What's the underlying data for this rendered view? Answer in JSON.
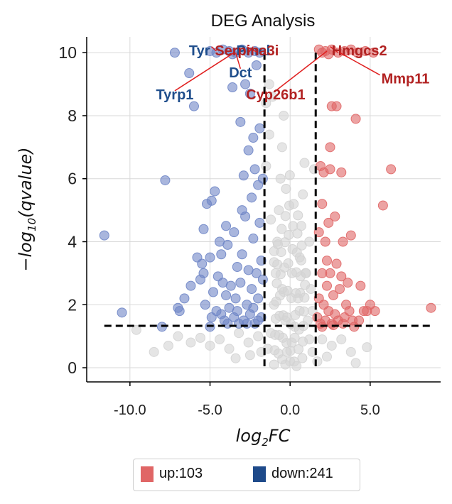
{
  "chart_data": {
    "type": "scatter",
    "title": "DEG Analysis",
    "xlabel_base": "log",
    "xlabel_sub": "2",
    "xlabel_rest": "FC",
    "ylabel_prefix": "−log",
    "ylabel_sub": "10",
    "ylabel_rest": "(qvalue)",
    "xlim": [
      -12.7,
      9.4
    ],
    "ylim": [
      -0.45,
      10.5
    ],
    "xticks": [
      -10.0,
      -5.0,
      0.0,
      5.0
    ],
    "xtick_labels": [
      "-10.0",
      "-5.0",
      "0.0",
      "5.0"
    ],
    "yticks": [
      0,
      2,
      4,
      6,
      8,
      10
    ],
    "ytick_labels": [
      "0",
      "2",
      "4",
      "6",
      "8",
      "10"
    ],
    "grid": true,
    "thresholds": {
      "fc_low": -1.6,
      "fc_high": 1.6,
      "q": 1.33
    },
    "colors": {
      "up": "#e06666",
      "down": "#6f86c6",
      "ns": "#d4d4d4",
      "up_label": "#b22222",
      "down_label": "#1f4e8c"
    },
    "legend": [
      {
        "name": "up",
        "count_label": "up:103",
        "color": "#e06666"
      },
      {
        "name": "down",
        "count_label": "down:241",
        "color": "#1e4a8a"
      }
    ],
    "series": [
      {
        "name": "down",
        "points": [
          [
            -11.6,
            4.2
          ],
          [
            -10.5,
            1.75
          ],
          [
            -8.0,
            1.3
          ],
          [
            -7.8,
            5.95
          ],
          [
            -7.2,
            10.0
          ],
          [
            -7.0,
            1.9
          ],
          [
            -6.9,
            1.8
          ],
          [
            -6.6,
            2.2
          ],
          [
            -6.3,
            9.35
          ],
          [
            -6.2,
            2.6
          ],
          [
            -6.0,
            8.3
          ],
          [
            -5.8,
            3.5
          ],
          [
            -5.6,
            2.8
          ],
          [
            -5.5,
            3.3
          ],
          [
            -5.4,
            4.4
          ],
          [
            -5.3,
            2.0
          ],
          [
            -5.2,
            5.2
          ],
          [
            -5.0,
            3.5
          ],
          [
            -5.0,
            1.3
          ],
          [
            -4.9,
            5.3
          ],
          [
            -4.8,
            2.4
          ],
          [
            -4.7,
            5.6
          ],
          [
            -4.6,
            1.8
          ],
          [
            -4.5,
            2.9
          ],
          [
            -4.4,
            4.0
          ],
          [
            -4.3,
            3.6
          ],
          [
            -4.2,
            2.7
          ],
          [
            -4.1,
            1.5
          ],
          [
            -4.0,
            4.5
          ],
          [
            -4.0,
            2.3
          ],
          [
            -3.9,
            3.9
          ],
          [
            -3.8,
            1.9
          ],
          [
            -3.7,
            2.6
          ],
          [
            -3.6,
            8.9
          ],
          [
            -3.5,
            4.3
          ],
          [
            -3.5,
            1.6
          ],
          [
            -3.4,
            2.2
          ],
          [
            -3.3,
            3.2
          ],
          [
            -3.2,
            1.4
          ],
          [
            -3.1,
            7.8
          ],
          [
            -3.1,
            2.7
          ],
          [
            -3.0,
            5.0
          ],
          [
            -3.0,
            3.6
          ],
          [
            -2.9,
            6.1
          ],
          [
            -2.9,
            1.5
          ],
          [
            -2.8,
            9.0
          ],
          [
            -2.8,
            4.8
          ],
          [
            -2.7,
            2.0
          ],
          [
            -2.6,
            6.9
          ],
          [
            -2.6,
            3.1
          ],
          [
            -2.5,
            8.7
          ],
          [
            -2.5,
            1.7
          ],
          [
            -2.4,
            5.4
          ],
          [
            -2.4,
            2.5
          ],
          [
            -2.3,
            7.3
          ],
          [
            -2.3,
            4.1
          ],
          [
            -2.2,
            6.3
          ],
          [
            -2.2,
            1.4
          ],
          [
            -2.1,
            3.0
          ],
          [
            -2.1,
            9.6
          ],
          [
            -2.0,
            5.8
          ],
          [
            -2.0,
            2.2
          ],
          [
            -1.9,
            4.6
          ],
          [
            -1.9,
            7.6
          ],
          [
            -1.8,
            3.4
          ],
          [
            -1.8,
            1.6
          ],
          [
            -1.7,
            6.0
          ],
          [
            -1.7,
            2.8
          ],
          [
            -3.4,
            10.0
          ],
          [
            -3.8,
            10.05
          ],
          [
            -4.2,
            10.1
          ],
          [
            -4.6,
            10.0
          ],
          [
            -5.0,
            10.05
          ],
          [
            -2.6,
            10.0
          ],
          [
            -2.2,
            10.05
          ],
          [
            -1.9,
            10.0
          ],
          [
            -3.0,
            10.1
          ],
          [
            -3.6,
            9.95
          ],
          [
            -5.4,
            3.0
          ],
          [
            -4.9,
            1.6
          ],
          [
            -4.3,
            1.7
          ],
          [
            -3.9,
            1.4
          ],
          [
            -3.3,
            1.8
          ],
          [
            -2.7,
            1.4
          ],
          [
            -2.3,
            1.9
          ],
          [
            -2.0,
            1.5
          ]
        ]
      },
      {
        "name": "up",
        "points": [
          [
            1.7,
            1.6
          ],
          [
            1.8,
            2.2
          ],
          [
            1.8,
            4.3
          ],
          [
            1.9,
            6.4
          ],
          [
            1.9,
            1.4
          ],
          [
            2.0,
            3.0
          ],
          [
            2.0,
            5.2
          ],
          [
            2.1,
            2.0
          ],
          [
            2.1,
            6.2
          ],
          [
            2.2,
            4.0
          ],
          [
            2.2,
            1.5
          ],
          [
            2.3,
            2.6
          ],
          [
            2.3,
            3.4
          ],
          [
            2.4,
            4.6
          ],
          [
            2.4,
            1.8
          ],
          [
            2.5,
            6.3
          ],
          [
            2.5,
            3.0
          ],
          [
            2.5,
            7.0
          ],
          [
            2.6,
            8.3
          ],
          [
            2.6,
            1.4
          ],
          [
            2.7,
            2.3
          ],
          [
            2.8,
            4.8
          ],
          [
            2.8,
            1.7
          ],
          [
            2.9,
            8.3
          ],
          [
            2.9,
            3.3
          ],
          [
            3.0,
            1.5
          ],
          [
            3.1,
            2.5
          ],
          [
            3.2,
            6.2
          ],
          [
            3.2,
            2.9
          ],
          [
            3.3,
            4.0
          ],
          [
            3.4,
            1.6
          ],
          [
            3.5,
            2.0
          ],
          [
            3.6,
            2.7
          ],
          [
            3.7,
            1.8
          ],
          [
            3.8,
            4.2
          ],
          [
            3.9,
            1.5
          ],
          [
            4.1,
            7.9
          ],
          [
            4.3,
            1.5
          ],
          [
            4.4,
            2.6
          ],
          [
            4.6,
            1.8
          ],
          [
            4.8,
            1.8
          ],
          [
            5.0,
            2.0
          ],
          [
            5.3,
            1.8
          ],
          [
            5.8,
            5.15
          ],
          [
            6.3,
            6.3
          ],
          [
            8.8,
            1.9
          ],
          [
            2.2,
            10.05
          ],
          [
            2.6,
            10.1
          ],
          [
            3.0,
            10.0
          ],
          [
            3.4,
            10.05
          ],
          [
            3.8,
            10.1
          ],
          [
            4.2,
            10.0
          ],
          [
            4.7,
            10.05
          ],
          [
            2.0,
            10.0
          ],
          [
            1.8,
            10.1
          ],
          [
            2.4,
            9.95
          ],
          [
            5.2,
            10.0
          ],
          [
            2.0,
            1.3
          ],
          [
            2.7,
            1.35
          ],
          [
            3.3,
            1.4
          ],
          [
            4.0,
            1.3
          ]
        ]
      },
      {
        "name": "ns",
        "points": [
          [
            -9.6,
            1.2
          ],
          [
            -8.5,
            0.5
          ],
          [
            -7.6,
            0.7
          ],
          [
            -7.0,
            1.0
          ],
          [
            -6.2,
            0.8
          ],
          [
            -5.6,
            0.95
          ],
          [
            -5.0,
            0.7
          ],
          [
            -4.4,
            0.9
          ],
          [
            -3.8,
            0.6
          ],
          [
            -3.2,
            1.1
          ],
          [
            -2.6,
            0.8
          ],
          [
            -2.0,
            1.0
          ],
          [
            -1.4,
            0.6
          ],
          [
            -1.2,
            1.1
          ],
          [
            -1.0,
            2.0
          ],
          [
            -0.9,
            3.0
          ],
          [
            -0.8,
            4.0
          ],
          [
            -0.7,
            5.0
          ],
          [
            -0.6,
            6.0
          ],
          [
            -0.5,
            7.0
          ],
          [
            -0.4,
            8.0
          ],
          [
            -0.5,
            2.5
          ],
          [
            -0.3,
            1.5
          ],
          [
            -0.2,
            0.5
          ],
          [
            0.0,
            0.2
          ],
          [
            0.1,
            0.8
          ],
          [
            0.3,
            1.3
          ],
          [
            0.5,
            2.2
          ],
          [
            0.6,
            3.5
          ],
          [
            0.7,
            4.5
          ],
          [
            0.8,
            5.5
          ],
          [
            0.9,
            6.5
          ],
          [
            1.0,
            3.0
          ],
          [
            1.1,
            1.5
          ],
          [
            1.2,
            0.9
          ],
          [
            1.4,
            0.5
          ],
          [
            -1.5,
            8.4
          ],
          [
            -1.3,
            9.0
          ],
          [
            -1.1,
            8.6
          ],
          [
            -1.3,
            7.4
          ],
          [
            -1.5,
            6.4
          ],
          [
            -1.2,
            4.7
          ],
          [
            -1.0,
            3.7
          ],
          [
            1.3,
            2.5
          ],
          [
            1.4,
            1.8
          ],
          [
            1.5,
            6.3
          ],
          [
            1.2,
            4.0
          ],
          [
            2.0,
            0.9
          ],
          [
            2.6,
            0.7
          ],
          [
            3.2,
            0.9
          ],
          [
            3.8,
            0.5
          ],
          [
            4.1,
            0.15
          ],
          [
            4.8,
            0.65
          ],
          [
            0.4,
            0.05
          ],
          [
            -0.3,
            0.1
          ],
          [
            -1.8,
            0.5
          ],
          [
            -2.5,
            0.4
          ],
          [
            -3.4,
            0.3
          ],
          [
            1.7,
            0.2
          ],
          [
            2.3,
            0.35
          ]
        ]
      }
    ],
    "annotations": [
      {
        "label": "Tyr",
        "color": "down",
        "x": -4.6,
        "y": 10.05,
        "anchor": "end",
        "lx": -5.0,
        "ly": 10.1
      },
      {
        "label": "Dct",
        "color": "down",
        "x": -3.4,
        "y": 10.0,
        "anchor": "middle",
        "lx": -3.1,
        "ly": 9.4
      },
      {
        "label": "Tyrp1",
        "color": "down",
        "x": -3.5,
        "y": 10.0,
        "anchor": "middle",
        "lx": -7.2,
        "ly": 8.7
      },
      {
        "label": "Pmel",
        "color": "down",
        "x": -2.6,
        "y": 10.0,
        "anchor": "middle",
        "lx": -2.3,
        "ly": 10.1
      },
      {
        "label": "Serpina3i",
        "color": "up",
        "x": -2.0,
        "y": 10.0,
        "anchor": "middle",
        "lx": -2.7,
        "ly": 10.1
      },
      {
        "label": "Cyp26b1",
        "color": "up",
        "x": 2.3,
        "y": 10.05,
        "anchor": "middle",
        "lx": -0.9,
        "ly": 8.7
      },
      {
        "label": "Hmgcs2",
        "color": "up",
        "x": 3.0,
        "y": 10.0,
        "anchor": "start",
        "lx": 2.6,
        "ly": 10.1
      },
      {
        "label": "Mmp11",
        "color": "up",
        "x": 3.1,
        "y": 10.0,
        "anchor": "start",
        "lx": 5.7,
        "ly": 9.2
      }
    ]
  }
}
